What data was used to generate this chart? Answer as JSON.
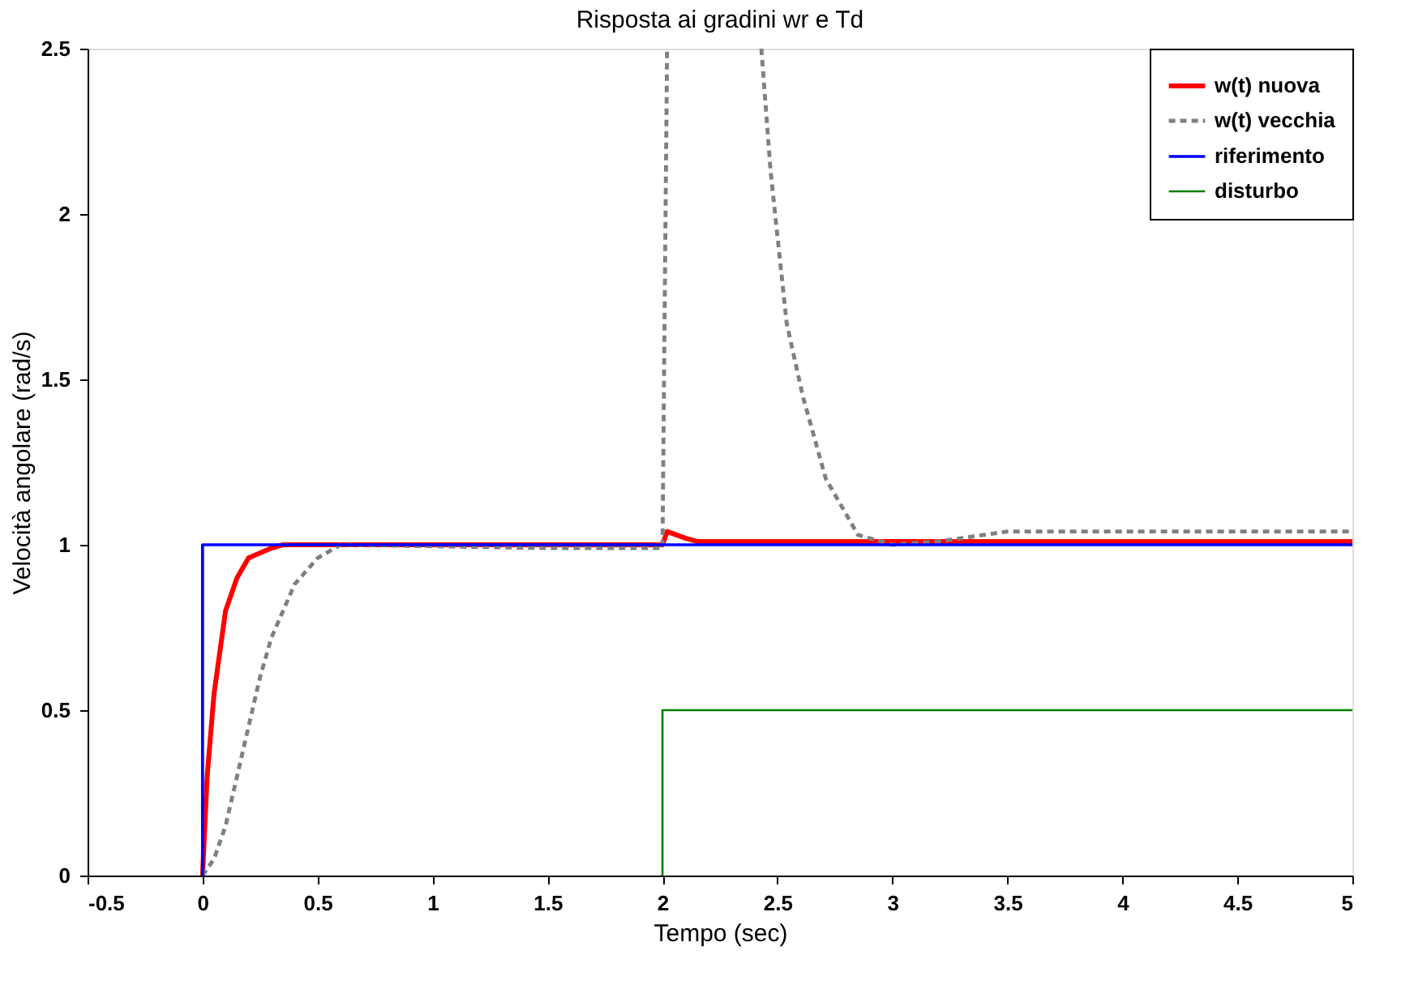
{
  "chart_data": {
    "type": "line",
    "title": "Risposta ai gradini wr e Td",
    "xlabel": "Tempo (sec)",
    "ylabel": "Velocità angolare (rad/s)",
    "xlim": [
      -0.5,
      5
    ],
    "xticks": [
      -0.5,
      0,
      0.5,
      1,
      1.5,
      2,
      2.5,
      3,
      3.5,
      4,
      4.5,
      5
    ],
    "ylim": [
      0,
      2.5
    ],
    "yticks": [
      0,
      0.5,
      1,
      1.5,
      2,
      2.5
    ],
    "grid": false,
    "legend": "top right",
    "marker": "none",
    "series": [
      {
        "name": "w(t) nuova",
        "color": "#ff0000",
        "line_style": "solid",
        "x": [
          0,
          0.02,
          0.05,
          0.1,
          0.15,
          0.2,
          0.3,
          0.35,
          2,
          2.02,
          2.1,
          2.15,
          5
        ],
        "values": [
          0,
          0.3,
          0.55,
          0.8,
          0.9,
          0.96,
          0.99,
          1.0,
          1.0,
          1.04,
          1.02,
          1.01,
          1.01
        ]
      },
      {
        "name": "w(t) vecchia",
        "color": "#808080",
        "line_style": "dashed",
        "x": [
          0,
          0.05,
          0.1,
          0.15,
          0.2,
          0.25,
          0.3,
          0.4,
          0.5,
          0.6,
          1.5,
          2,
          2.02,
          2.2,
          2.43,
          2.47,
          2.54,
          2.61,
          2.71,
          2.85,
          3,
          3.2,
          3.5,
          5
        ],
        "values": [
          0,
          0.05,
          0.15,
          0.3,
          0.45,
          0.6,
          0.72,
          0.88,
          0.96,
          1.0,
          0.99,
          0.99,
          2.5,
          null,
          2.5,
          2.13,
          1.67,
          1.45,
          1.2,
          1.03,
          1.0,
          1.01,
          1.04,
          1.04
        ]
      },
      {
        "name": "riferimento",
        "color": "#0000ff",
        "line_style": "solid",
        "x": [
          0,
          0,
          5
        ],
        "values": [
          0,
          1,
          1
        ]
      },
      {
        "name": "disturbo",
        "color": "#008000",
        "line_style": "solid",
        "x": [
          2,
          2,
          5
        ],
        "values": [
          0,
          0.5,
          0.5
        ]
      }
    ]
  }
}
